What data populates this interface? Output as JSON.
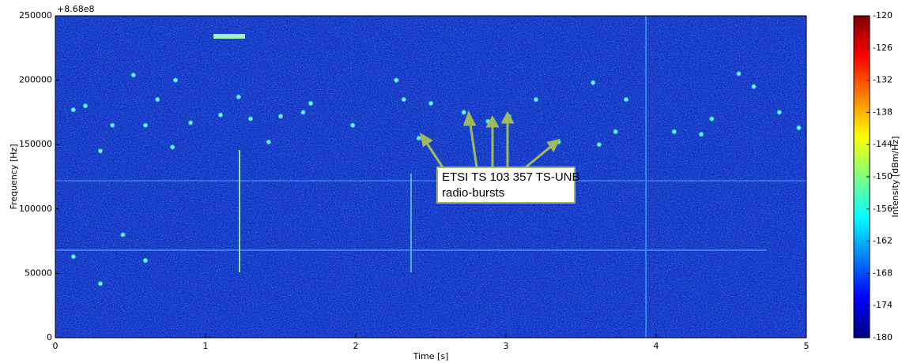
{
  "chart_data": {
    "type": "scatter",
    "offset_label": "+8.68e8",
    "x_label": "Time [s]",
    "y_label": "Frequency [Hz]",
    "xlim": [
      0,
      5
    ],
    "xticks": [
      0,
      1,
      2,
      3,
      4,
      5
    ],
    "ylim": [
      0,
      250000
    ],
    "yticks": [
      0,
      50000,
      100000,
      150000,
      200000,
      250000
    ],
    "x": [
      0.12,
      0.2,
      0.38,
      0.52,
      0.6,
      0.68,
      0.78,
      0.8,
      0.9,
      1.1,
      1.22,
      1.3,
      1.42,
      1.5,
      1.65,
      1.7,
      1.98,
      2.27,
      2.32,
      2.42,
      2.5,
      2.72,
      2.88,
      3.02,
      3.2,
      3.35,
      3.58,
      3.62,
      3.73,
      3.8,
      4.12,
      4.3,
      4.37,
      4.55,
      4.65,
      4.82,
      4.95,
      0.3,
      0.6,
      0.12,
      0.3,
      0.45
    ],
    "values": [
      177000,
      180000,
      165000,
      204000,
      165000,
      185000,
      148000,
      200000,
      167000,
      173000,
      187000,
      170000,
      152000,
      172000,
      175000,
      182000,
      165000,
      200000,
      185000,
      155000,
      182000,
      175000,
      168000,
      172000,
      185000,
      152000,
      198000,
      150000,
      160000,
      185000,
      160000,
      158000,
      170000,
      205000,
      195000,
      175000,
      163000,
      42000,
      60000,
      63000,
      145000,
      80000
    ],
    "color": "#6ff5d8",
    "colorbar": {
      "label": "Intensity [dBm/Hz]",
      "lim": [
        -180,
        -120
      ],
      "ticks": [
        -180,
        -174,
        -168,
        -162,
        -156,
        -150,
        -144,
        -138,
        -132,
        -126,
        -120
      ]
    },
    "annotation": [
      "ETSI TS 103 357 TS-UNB",
      "radio-bursts"
    ]
  }
}
